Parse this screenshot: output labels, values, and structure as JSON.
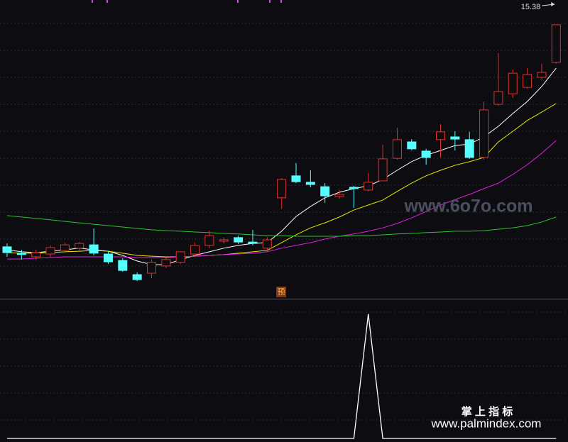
{
  "chart_data": [
    {
      "type": "candlestick",
      "up_color": "#e0302c",
      "down_color": "#54ffff",
      "ylim": [
        5.56,
        16.27
      ],
      "open": [
        7.4,
        7.17,
        7.04,
        7.14,
        7.27,
        7.35,
        7.47,
        7.14,
        6.91,
        6.4,
        6.45,
        6.71,
        6.84,
        7.14,
        7.45,
        7.6,
        7.73,
        7.57,
        7.35,
        9.16,
        9.95,
        9.72,
        9.56,
        9.21,
        9.54,
        9.44,
        9.77,
        10.58,
        11.17,
        10.84,
        11.25,
        11.35,
        11.25,
        10.61,
        12.52,
        12.9,
        13.13,
        13.49,
        14.03
      ],
      "high": [
        7.52,
        7.29,
        7.29,
        7.45,
        7.55,
        7.57,
        8.06,
        7.24,
        6.99,
        6.48,
        6.94,
        7.01,
        7.22,
        7.55,
        7.98,
        7.73,
        7.8,
        8.01,
        7.75,
        9.87,
        10.41,
        10.15,
        9.69,
        9.44,
        9.59,
        10.05,
        11.07,
        11.68,
        11.27,
        10.92,
        11.81,
        11.55,
        11.53,
        12.62,
        14.36,
        13.77,
        13.82,
        13.98,
        15.38
      ],
      "low": [
        7.04,
        6.94,
        6.94,
        7.04,
        7.19,
        7.27,
        7.09,
        6.78,
        6.5,
        6.17,
        6.27,
        6.63,
        6.78,
        7.06,
        7.35,
        7.52,
        7.5,
        7.45,
        7.29,
        8.77,
        9.69,
        9.54,
        8.98,
        9.13,
        8.8,
        9.39,
        9.77,
        10.53,
        10.86,
        10.35,
        10.61,
        10.86,
        10.56,
        10.53,
        12.47,
        12.75,
        13.08,
        13.41,
        13.98
      ],
      "close": [
        7.19,
        7.12,
        7.19,
        7.37,
        7.47,
        7.52,
        7.17,
        6.86,
        6.55,
        6.22,
        6.84,
        6.94,
        7.22,
        7.45,
        7.8,
        7.65,
        7.57,
        7.52,
        7.65,
        9.82,
        9.74,
        9.64,
        9.23,
        9.28,
        9.49,
        9.72,
        10.56,
        11.25,
        10.92,
        10.61,
        11.53,
        11.27,
        10.61,
        12.32,
        12.98,
        13.64,
        13.59,
        13.67,
        15.38
      ],
      "high_label": "15.38",
      "series": [
        {
          "color": "#ffffff",
          "values": [
            7.29,
            7.22,
            7.19,
            7.24,
            7.29,
            7.35,
            7.29,
            7.24,
            7.09,
            6.89,
            6.76,
            6.76,
            6.94,
            7.09,
            7.22,
            7.35,
            7.45,
            7.52,
            7.55,
            7.96,
            8.49,
            8.85,
            9.16,
            9.36,
            9.49,
            9.59,
            9.82,
            10.15,
            10.46,
            10.69,
            10.86,
            11.04,
            11.09,
            11.35,
            11.73,
            12.19,
            12.62,
            13.16,
            13.82
          ]
        },
        {
          "color": "#e6e600",
          "values": [
            7.19,
            7.17,
            7.17,
            7.19,
            7.22,
            7.24,
            7.27,
            7.24,
            7.17,
            7.09,
            7.06,
            7.04,
            7.04,
            7.06,
            7.09,
            7.12,
            7.17,
            7.22,
            7.27,
            7.55,
            7.83,
            8.08,
            8.26,
            8.47,
            8.72,
            8.9,
            9.08,
            9.39,
            9.69,
            9.95,
            10.15,
            10.33,
            10.46,
            10.61,
            11.17,
            11.55,
            11.94,
            12.24,
            12.55
          ]
        },
        {
          "color": "#e020e0",
          "values": [
            6.96,
            6.96,
            6.99,
            7.01,
            7.04,
            7.04,
            7.04,
            7.04,
            7.04,
            7.01,
            7.01,
            7.01,
            7.04,
            7.06,
            7.09,
            7.12,
            7.14,
            7.17,
            7.22,
            7.35,
            7.45,
            7.55,
            7.68,
            7.78,
            7.86,
            7.96,
            8.08,
            8.24,
            8.44,
            8.67,
            8.9,
            9.1,
            9.28,
            9.49,
            9.69,
            10.0,
            10.35,
            10.76,
            11.22
          ]
        },
        {
          "color": "#30c030",
          "values": [
            8.52,
            8.47,
            8.42,
            8.37,
            8.31,
            8.26,
            8.21,
            8.16,
            8.11,
            8.06,
            8.01,
            7.98,
            7.96,
            7.93,
            7.91,
            7.88,
            7.86,
            7.83,
            7.8,
            7.8,
            7.78,
            7.78,
            7.78,
            7.78,
            7.8,
            7.8,
            7.83,
            7.86,
            7.88,
            7.91,
            7.93,
            7.96,
            7.96,
            7.98,
            8.03,
            8.08,
            8.16,
            8.29,
            8.47
          ]
        }
      ],
      "badge": "预",
      "watermark": "www.6o7o.com"
    },
    {
      "type": "line",
      "color": "#ffffff",
      "ylim": [
        0,
        1.1
      ],
      "values": [
        0,
        0,
        0,
        0,
        0,
        0,
        0,
        0,
        0,
        0,
        0,
        0,
        0,
        0,
        0,
        0,
        0,
        0,
        0,
        0,
        0,
        0,
        0,
        0,
        0,
        1,
        0,
        0,
        0,
        0,
        0,
        0,
        0,
        0,
        0,
        0,
        0,
        0,
        0
      ],
      "brand": "掌 上 指 标",
      "site": "www.palmindex.com"
    }
  ]
}
